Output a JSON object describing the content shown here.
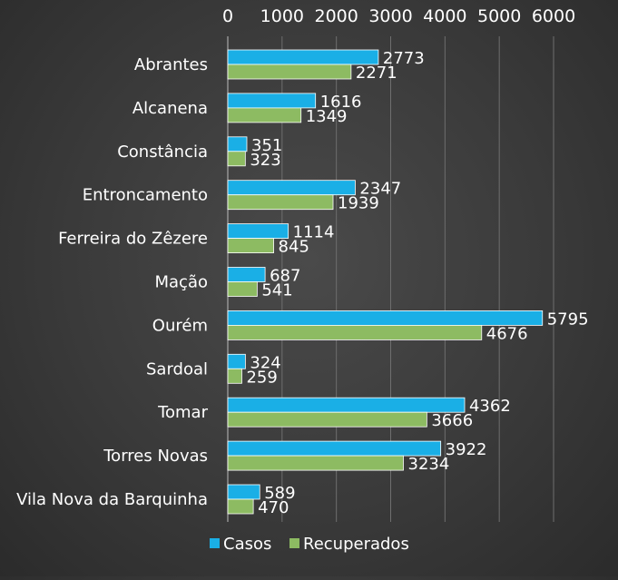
{
  "chart_data": {
    "type": "bar",
    "orientation": "horizontal",
    "title": "",
    "xlabel": "",
    "ylabel": "",
    "xlim": [
      0,
      6000
    ],
    "x_ticks": [
      0,
      1000,
      2000,
      3000,
      4000,
      5000,
      6000
    ],
    "x_tick_labels": [
      "0",
      "1000",
      "2000",
      "3000",
      "4000",
      "5000",
      "6000"
    ],
    "x_axis_position": "top",
    "grid": true,
    "legend_position": "bottom",
    "categories": [
      "Abrantes",
      "Alcanena",
      "Constância",
      "Entroncamento",
      "Ferreira do Zêzere",
      "Mação",
      "Ourém",
      "Sardoal",
      "Tomar",
      "Torres Novas",
      "Vila Nova da Barquinha"
    ],
    "series": [
      {
        "name": "Casos",
        "color": "#1aafe6",
        "values": [
          2773,
          1616,
          351,
          2347,
          1114,
          687,
          5795,
          324,
          4362,
          3922,
          589
        ]
      },
      {
        "name": "Recuperados",
        "color": "#8dbb62",
        "values": [
          2271,
          1349,
          323,
          1939,
          845,
          541,
          4676,
          259,
          3666,
          3234,
          470
        ]
      }
    ],
    "data_labels": true
  },
  "colors": {
    "text": "#ffffff",
    "grid": "#6e6e6e",
    "axis": "#a8a8a8",
    "bar_outline": "#ffffff"
  }
}
